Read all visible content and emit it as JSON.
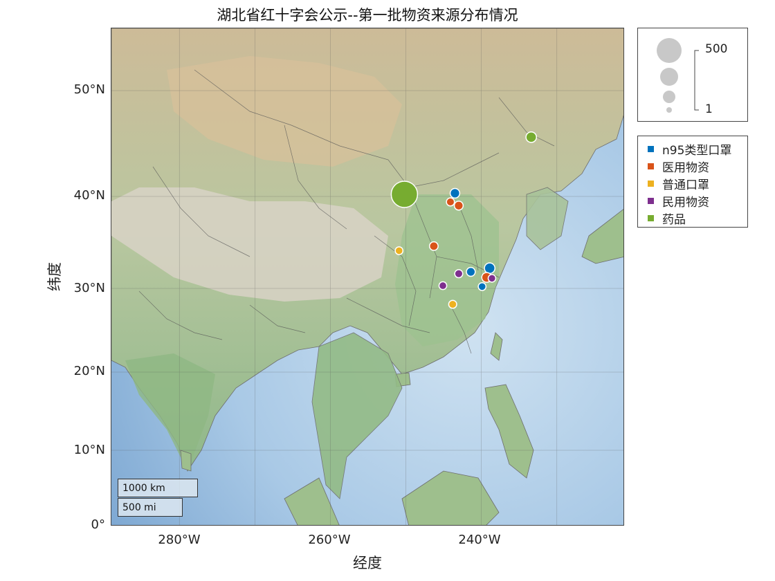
{
  "title": "湖北省红十字会公示--第一批物资来源分布情况",
  "xlabel": "经度",
  "ylabel": "纬度",
  "y_ticks": [
    "50°N",
    "40°N",
    "30°N",
    "20°N",
    "10°N",
    "0°"
  ],
  "x_ticks": [
    "280°W",
    "260°W",
    "240°W"
  ],
  "size_legend": {
    "max_label": "500",
    "min_label": "1"
  },
  "categories": [
    {
      "label": "n95类型口罩",
      "color": "#0072BD"
    },
    {
      "label": "医用物资",
      "color": "#D95319"
    },
    {
      "label": "普通口罩",
      "color": "#EDB120"
    },
    {
      "label": "民用物资",
      "color": "#7E2F8E"
    },
    {
      "label": "药品",
      "color": "#77AC30"
    }
  ],
  "scalebar": {
    "km": "1000 km",
    "mi": "500 mi"
  },
  "chart_data": {
    "type": "scatter",
    "title": "湖北省红十字会公示--第一批物资来源分布情况",
    "xlabel": "经度",
    "ylabel": "纬度",
    "xlim": [
      -289,
      -221
    ],
    "ylim": [
      0,
      55
    ],
    "size_range": [
      1,
      500
    ],
    "points": [
      {
        "lon": -250.2,
        "lat": 40.2,
        "category": "药品",
        "size": 500
      },
      {
        "lon": -233.4,
        "lat": 45.6,
        "category": "药品",
        "size": 30
      },
      {
        "lon": -243.5,
        "lat": 40.3,
        "category": "n95类型口罩",
        "size": 20
      },
      {
        "lon": -244.1,
        "lat": 39.4,
        "category": "医用物资",
        "size": 8
      },
      {
        "lon": -243.0,
        "lat": 39.0,
        "category": "医用物资",
        "size": 14
      },
      {
        "lon": -246.3,
        "lat": 34.6,
        "category": "医用物资",
        "size": 12
      },
      {
        "lon": -250.9,
        "lat": 34.1,
        "category": "普通口罩",
        "size": 7
      },
      {
        "lon": -238.9,
        "lat": 32.2,
        "category": "n95类型口罩",
        "size": 30
      },
      {
        "lon": -241.4,
        "lat": 31.8,
        "category": "n95类型口罩",
        "size": 14
      },
      {
        "lon": -243.0,
        "lat": 31.6,
        "category": "民用物资",
        "size": 8
      },
      {
        "lon": -239.3,
        "lat": 31.2,
        "category": "医用物资",
        "size": 22
      },
      {
        "lon": -238.6,
        "lat": 31.1,
        "category": "民用物资",
        "size": 6
      },
      {
        "lon": -245.1,
        "lat": 30.3,
        "category": "民用物资",
        "size": 7
      },
      {
        "lon": -239.9,
        "lat": 30.2,
        "category": "n95类型口罩",
        "size": 7
      },
      {
        "lon": -243.8,
        "lat": 28.1,
        "category": "普通口罩",
        "size": 8
      }
    ]
  }
}
